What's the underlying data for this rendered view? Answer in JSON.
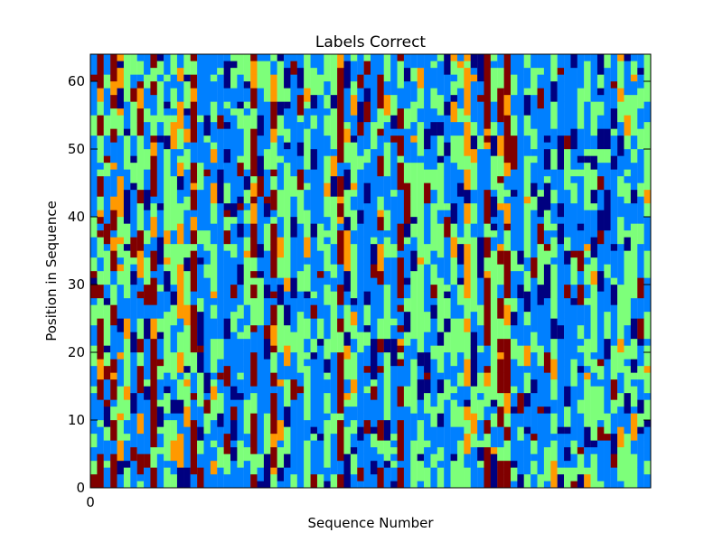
{
  "chart_data": {
    "type": "heatmap",
    "title": "Labels Correct",
    "xlabel": "Sequence Number",
    "ylabel": "Position in Sequence",
    "xlim": [
      0,
      84
    ],
    "ylim": [
      0,
      64
    ],
    "x_ticks": [
      0
    ],
    "y_ticks": [
      0,
      10,
      20,
      30,
      40,
      50,
      60
    ],
    "grid": false,
    "legend": "none",
    "colormap": "jet",
    "colors": {
      "dark-navy": "#000080",
      "dark-blue": "#0000c8",
      "blue": "#0080ff",
      "green": "#7dff7a",
      "orange": "#ff9900",
      "dark-red": "#800000"
    },
    "notes_dominant_values": {
      "column_types": [
        "red-dominant",
        "orange-stripe",
        "green",
        "blue"
      ],
      "typical_cell_values": [
        "navy",
        "blue",
        "green",
        "orange",
        "dark-red"
      ]
    }
  }
}
